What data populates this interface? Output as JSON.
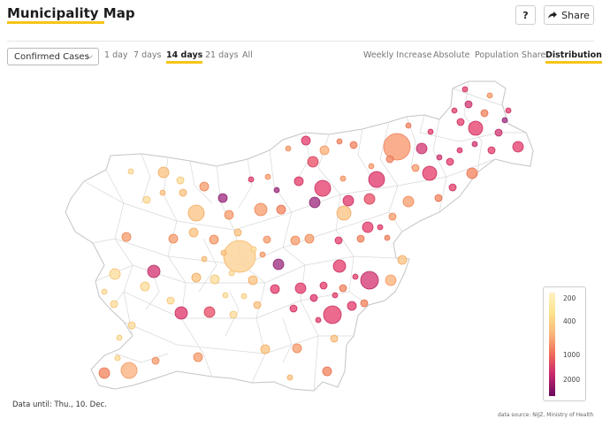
{
  "header": {
    "title": "Municipality Map",
    "help_label": "?",
    "share_label": "Share"
  },
  "controls": {
    "metric_select": "Confirmed Cases",
    "periods": [
      "1 day",
      "7 days",
      "14 days",
      "21 days",
      "All"
    ],
    "active_period": "14 days",
    "modes": [
      "Weekly Increase",
      "Absolute",
      "Population Share",
      "Distribution"
    ],
    "active_mode": "Distribution"
  },
  "legend": {
    "labels": [
      "200",
      "400",
      "1000",
      "2000"
    ]
  },
  "footer": {
    "data_until": "Data until: Thu., 10. Dec.",
    "source": "data source: NIJZ, Ministry of Health"
  },
  "colors": {
    "accent": "#f5c518",
    "map_fill": "#ffffff",
    "border": "#c8c8c8"
  }
}
